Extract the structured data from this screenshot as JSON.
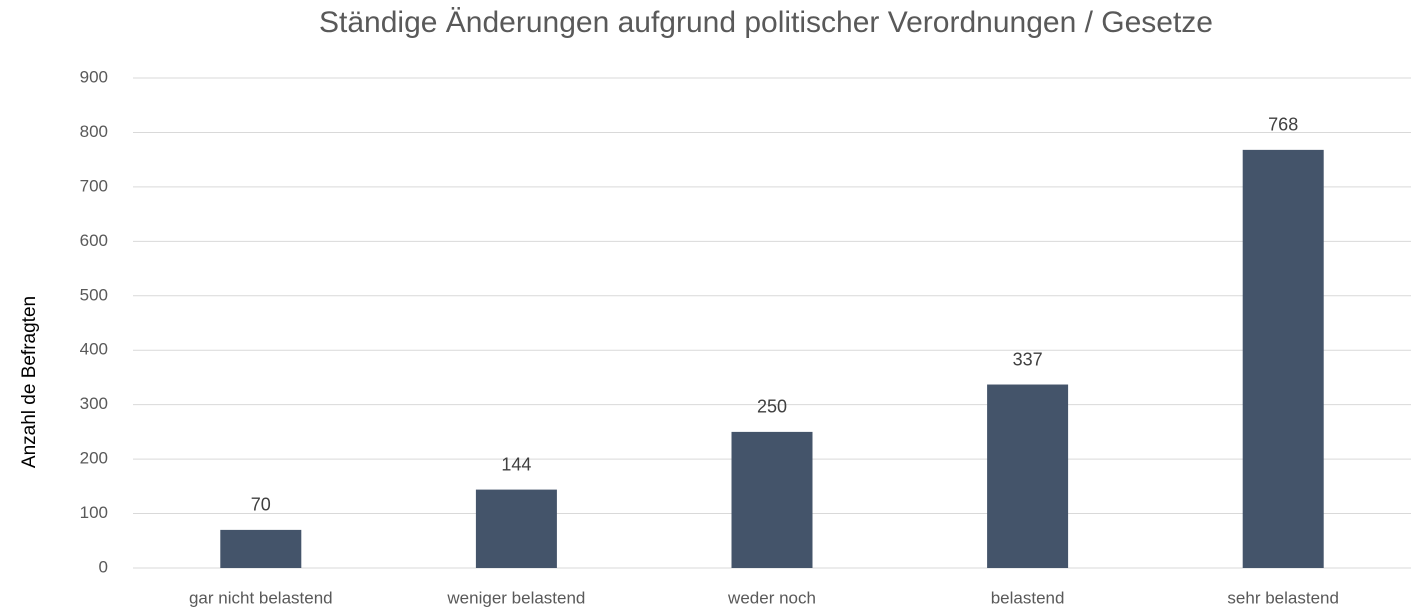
{
  "chart_data": {
    "type": "bar",
    "title": "Ständige Änderungen aufgrund politischer Verordnungen / Gesetze",
    "y_label": "Anzahl de Befragten",
    "categories": [
      "gar nicht belastend",
      "weniger belastend",
      "weder noch",
      "belastend",
      "sehr belastend"
    ],
    "values": [
      70,
      144,
      250,
      337,
      768
    ],
    "color": "#44546a",
    "ylim": [
      0,
      900
    ],
    "yticks": [
      0,
      100,
      200,
      300,
      400,
      500,
      600,
      700,
      800,
      900
    ],
    "grid": true
  }
}
